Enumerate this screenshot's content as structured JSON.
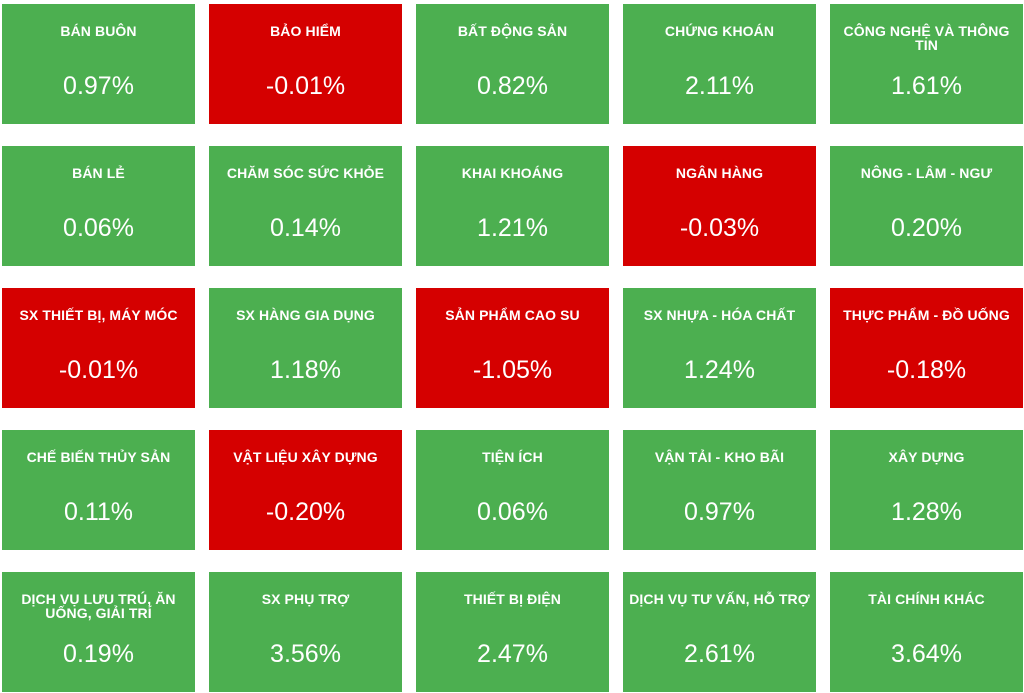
{
  "colors": {
    "up": "#4caf50",
    "down": "#d50000",
    "text": "#ffffff",
    "background": "#ffffff"
  },
  "sectors": [
    {
      "name": "BÁN BUÔN",
      "change": "0.97%",
      "trend": "up"
    },
    {
      "name": "BẢO HIỂM",
      "change": "-0.01%",
      "trend": "down"
    },
    {
      "name": "BẤT ĐỘNG SẢN",
      "change": "0.82%",
      "trend": "up"
    },
    {
      "name": "CHỨNG KHOÁN",
      "change": "2.11%",
      "trend": "up"
    },
    {
      "name": "CÔNG NGHỆ VÀ THÔNG TIN",
      "change": "1.61%",
      "trend": "up"
    },
    {
      "name": "BÁN LẺ",
      "change": "0.06%",
      "trend": "up"
    },
    {
      "name": "CHĂM SÓC SỨC KHỎE",
      "change": "0.14%",
      "trend": "up"
    },
    {
      "name": "KHAI KHOÁNG",
      "change": "1.21%",
      "trend": "up"
    },
    {
      "name": "NGÂN HÀNG",
      "change": "-0.03%",
      "trend": "down"
    },
    {
      "name": "NÔNG - LÂM - NGƯ",
      "change": "0.20%",
      "trend": "up"
    },
    {
      "name": "SX THIẾT BỊ, MÁY MÓC",
      "change": "-0.01%",
      "trend": "down"
    },
    {
      "name": "SX HÀNG GIA DỤNG",
      "change": "1.18%",
      "trend": "up"
    },
    {
      "name": "SẢN PHẨM CAO SU",
      "change": "-1.05%",
      "trend": "down"
    },
    {
      "name": "SX NHỰA - HÓA CHẤT",
      "change": "1.24%",
      "trend": "up"
    },
    {
      "name": "THỰC PHẨM - ĐỒ UỐNG",
      "change": "-0.18%",
      "trend": "down"
    },
    {
      "name": "CHẾ BIẾN THỦY SẢN",
      "change": "0.11%",
      "trend": "up"
    },
    {
      "name": "VẬT LIỆU XÂY DỰNG",
      "change": "-0.20%",
      "trend": "down"
    },
    {
      "name": "TIỆN ÍCH",
      "change": "0.06%",
      "trend": "up"
    },
    {
      "name": "VẬN TẢI - KHO BÃI",
      "change": "0.97%",
      "trend": "up"
    },
    {
      "name": "XÂY DỰNG",
      "change": "1.28%",
      "trend": "up"
    },
    {
      "name": "DỊCH VỤ LƯU TRÚ, ĂN UỐNG, GIẢI TRÍ",
      "change": "0.19%",
      "trend": "up"
    },
    {
      "name": "SX PHỤ TRỢ",
      "change": "3.56%",
      "trend": "up"
    },
    {
      "name": "THIẾT BỊ ĐIỆN",
      "change": "2.47%",
      "trend": "up"
    },
    {
      "name": "DỊCH VỤ TƯ VẤN, HỖ TRỢ",
      "change": "2.61%",
      "trend": "up"
    },
    {
      "name": "TÀI CHÍNH KHÁC",
      "change": "3.64%",
      "trend": "up"
    }
  ]
}
